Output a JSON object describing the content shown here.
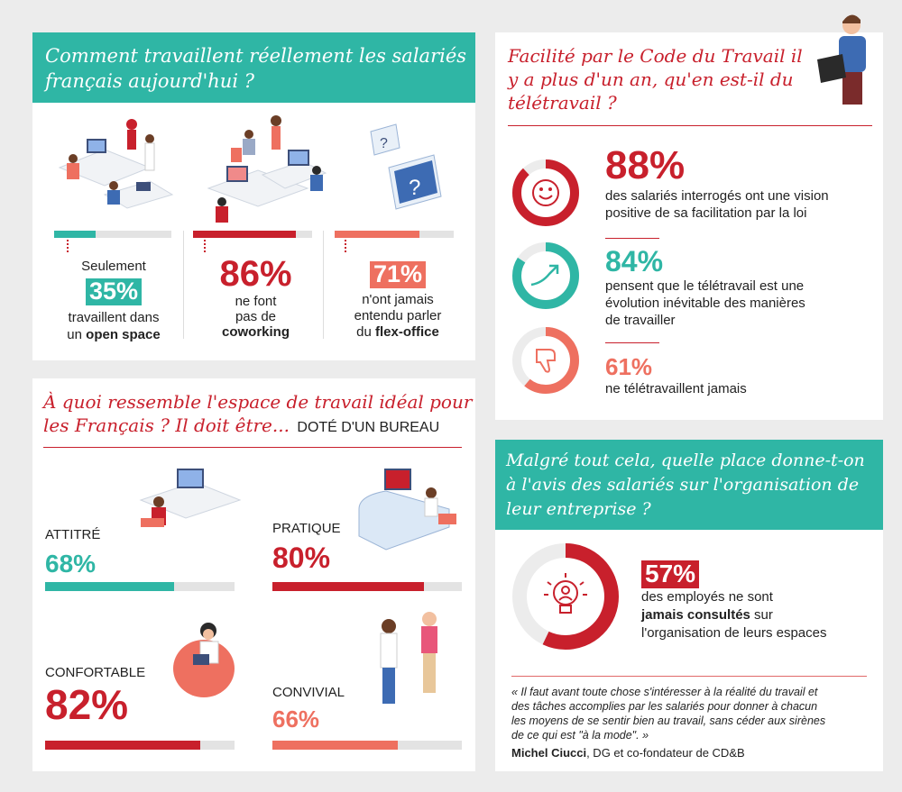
{
  "colors": {
    "teal": "#2fb6a5",
    "red": "#c8202c",
    "salmon": "#ee7060",
    "grey": "#e3e3e3"
  },
  "panel1": {
    "title_line1": "Comment travaillent réellement les salariés",
    "title_line2": "français aujourd'hui ?",
    "stat1": {
      "pre": "Seulement",
      "pct": "35%",
      "line1": "travaillent dans",
      "line2_pre": "un ",
      "line2_bold": "open space",
      "value": 0.35
    },
    "stat2": {
      "pct": "86%",
      "line1": "ne font",
      "line2": "pas de",
      "line3": "coworking",
      "value": 0.86
    },
    "stat3": {
      "pct": "71%",
      "line1": "n'ont jamais",
      "line2": "entendu parler",
      "line3_pre": "du ",
      "line3_bold": "flex-office",
      "value": 0.71
    }
  },
  "panel2": {
    "title_line1": "Facilité par le Code du Travail il",
    "title_line2": "y a plus d'un an, qu'en est-il du",
    "title_line3": "télétravail ?",
    "stat1": {
      "pct": "88%",
      "line1": "des salariés interrogés ont une vision",
      "line2": "positive de sa facilitation par la loi",
      "value": 0.88,
      "icon": "smiley-icon"
    },
    "stat2": {
      "pct": "84%",
      "line1": "pensent que le télétravail est une",
      "line2": "évolution inévitable des manières",
      "line3": "de travailler",
      "value": 0.84,
      "icon": "trend-arrow-icon"
    },
    "stat3": {
      "pct": "61%",
      "line1": "ne télétravaillent jamais",
      "value": 0.61,
      "icon": "thumbs-down-icon"
    }
  },
  "panel3": {
    "title_line1": "À quoi ressemble l'espace de travail idéal pour",
    "title_line2": "les Français ? Il doit être...",
    "title_suffix": "DOTÉ D'UN BUREAU",
    "items": [
      {
        "label": "ATTITRÉ",
        "pct": "68%",
        "value": 0.68
      },
      {
        "label": "PRATIQUE",
        "pct": "80%",
        "value": 0.8
      },
      {
        "label": "CONFORTABLE",
        "pct": "82%",
        "value": 0.82
      },
      {
        "label": "CONVIVIAL",
        "pct": "66%",
        "value": 0.66
      }
    ]
  },
  "panel4": {
    "title_line1": "Malgré tout cela, quelle place donne-t-on",
    "title_line2": "à l'avis des salariés sur l'organisation de",
    "title_line3": "leur entreprise ?",
    "stat": {
      "pct": "57%",
      "line1": "des employés ne sont",
      "line2_bold": "jamais consultés",
      "line2_post": " sur",
      "line3": "l'organisation de leurs espaces",
      "value": 0.57
    },
    "quote_line1": "« Il faut avant toute chose s'intéresser à la réalité du travail et",
    "quote_line2": "des tâches accomplies par les salariés pour donner à chacun",
    "quote_line3": "les moyens de se sentir bien au travail, sans céder aux sirènes",
    "quote_line4": "de ce qui est \"à la mode\". »",
    "author_bold": "Michel Ciucci",
    "author_rest": ", DG et co-fondateur de CD&B"
  }
}
